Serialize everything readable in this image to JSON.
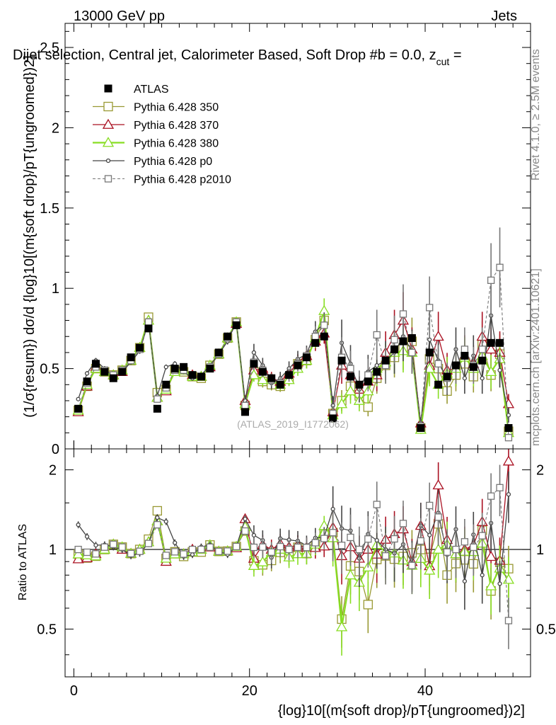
{
  "header": {
    "energy_label": "13000 GeV pp",
    "category_label": "Jets",
    "plot_title": "Dijet selection, Central jet, Calorimeter Based, Soft Drop #b = 0.0, z",
    "plot_title_sub": "cut",
    "plot_title_tail": " ="
  },
  "side_labels": {
    "rivet": "Rivet 4.1.0, ≥ 2.5M events",
    "mcplots": "mcplots.cern.ch [arXiv:2401.10621]"
  },
  "watermark": "(ATLAS_2019_I1772062)",
  "axes": {
    "main_ylabel": "(1/σ{resum}) dσ/d {log}10[(m{soft drop}/pT{ungroomed})2]",
    "ratio_ylabel": "Ratio to ATLAS",
    "xlabel": "{log}10[(m{soft drop}/pT{ungroomed})2]",
    "main_ticks": [
      "0",
      "0.5",
      "1",
      "1.5",
      "2",
      "2.5"
    ],
    "ratio_ticks": [
      "0.5",
      "1",
      "2"
    ],
    "x_ticks": [
      "0",
      "20",
      "40"
    ]
  },
  "legend": {
    "entries": [
      {
        "name": "ATLAS",
        "color": "#000000",
        "marker": "square-filled"
      },
      {
        "name": "Pythia 6.428 350",
        "color": "#999933",
        "marker": "square-open"
      },
      {
        "name": "Pythia 6.428 370",
        "color": "#aa1122",
        "marker": "triangle-open"
      },
      {
        "name": "Pythia 6.428 380",
        "color": "#88dd22",
        "marker": "triangle-open"
      },
      {
        "name": "Pythia 6.428 p0",
        "color": "#444444",
        "marker": "circle-open"
      },
      {
        "name": "Pythia 6.428 p2010",
        "color": "#777777",
        "marker": "square-open-dashed"
      }
    ]
  },
  "chart_data": {
    "type": "line",
    "title": "Dijet selection, Central jet, Calorimeter Based, Soft Drop #b = 0.0, z_cut =",
    "xlabel": "{log}10[(m{soft drop}/pT{ungroomed})2]",
    "ylabel": "(1/σ{resum}) dσ/d {log}10[(m{soft drop}/pT{ungroomed})2]",
    "xlim": [
      -1,
      52
    ],
    "ylim": [
      0,
      2.65
    ],
    "ratio_ylim": [
      0.33,
      2.4
    ],
    "x": [
      0.5,
      1.5,
      2.5,
      3.5,
      4.5,
      5.5,
      6.5,
      7.5,
      8.5,
      9.5,
      10.5,
      11.5,
      12.5,
      13.5,
      14.5,
      15.5,
      16.5,
      17.5,
      18.5,
      19.5,
      20.5,
      21.5,
      22.5,
      23.5,
      24.5,
      25.5,
      26.5,
      27.5,
      28.5,
      29.5,
      30.5,
      31.5,
      32.5,
      33.5,
      34.5,
      35.5,
      36.5,
      37.5,
      38.5,
      39.5,
      40.5,
      41.5,
      42.5,
      43.5,
      44.5,
      45.5,
      46.5,
      47.5,
      48.5,
      49.5
    ],
    "series": [
      {
        "name": "ATLAS",
        "values": [
          0.25,
          0.42,
          0.53,
          0.48,
          0.44,
          0.48,
          0.57,
          0.63,
          0.75,
          0.25,
          0.4,
          0.5,
          0.51,
          0.46,
          0.45,
          0.5,
          0.6,
          0.7,
          0.77,
          0.23,
          0.53,
          0.48,
          0.44,
          0.4,
          0.46,
          0.52,
          0.57,
          0.66,
          0.7,
          0.19,
          0.55,
          0.45,
          0.4,
          0.42,
          0.48,
          0.55,
          0.62,
          0.67,
          0.69,
          0.13,
          0.6,
          0.4,
          0.45,
          0.52,
          0.58,
          0.51,
          0.55,
          0.66,
          0.66,
          0.13
        ]
      },
      {
        "name": "Pythia 6.428 350",
        "values": [
          0.24,
          0.39,
          0.5,
          0.48,
          0.46,
          0.49,
          0.55,
          0.63,
          0.82,
          0.35,
          0.37,
          0.49,
          0.48,
          0.45,
          0.44,
          0.52,
          0.59,
          0.69,
          0.79,
          0.27,
          0.48,
          0.42,
          0.4,
          0.39,
          0.44,
          0.53,
          0.55,
          0.68,
          0.8,
          0.22,
          0.3,
          0.39,
          0.33,
          0.26,
          0.44,
          0.52,
          0.57,
          0.63,
          0.67,
          0.13,
          0.56,
          0.5,
          0.36,
          0.46,
          0.53,
          0.45,
          0.65,
          0.46,
          0.59,
          0.11
        ]
      },
      {
        "name": "Pythia 6.428 370",
        "values": [
          0.23,
          0.39,
          0.51,
          0.48,
          0.46,
          0.48,
          0.55,
          0.63,
          0.8,
          0.32,
          0.36,
          0.48,
          0.49,
          0.46,
          0.45,
          0.51,
          0.59,
          0.69,
          0.78,
          0.3,
          0.49,
          0.5,
          0.44,
          0.42,
          0.47,
          0.54,
          0.58,
          0.67,
          0.72,
          0.23,
          0.52,
          0.46,
          0.37,
          0.42,
          0.46,
          0.6,
          0.71,
          0.8,
          0.62,
          0.16,
          0.52,
          0.7,
          0.49,
          0.5,
          0.58,
          0.53,
          0.7,
          0.62,
          0.6,
          0.28
        ]
      },
      {
        "name": "Pythia 6.428 380",
        "values": [
          0.24,
          0.4,
          0.5,
          0.48,
          0.46,
          0.49,
          0.55,
          0.63,
          0.8,
          0.32,
          0.37,
          0.48,
          0.49,
          0.45,
          0.45,
          0.52,
          0.59,
          0.69,
          0.79,
          0.28,
          0.46,
          0.43,
          0.43,
          0.4,
          0.43,
          0.5,
          0.55,
          0.69,
          0.86,
          0.21,
          0.28,
          0.36,
          0.3,
          0.36,
          0.5,
          0.54,
          0.6,
          0.61,
          0.6,
          0.12,
          0.5,
          0.4,
          0.47,
          0.5,
          0.57,
          0.5,
          0.58,
          0.48,
          0.56,
          0.1
        ]
      },
      {
        "name": "Pythia 6.428 p0",
        "values": [
          0.31,
          0.47,
          0.55,
          0.5,
          0.45,
          0.48,
          0.54,
          0.61,
          0.79,
          0.33,
          0.51,
          0.53,
          0.48,
          0.44,
          0.46,
          0.52,
          0.59,
          0.67,
          0.79,
          0.3,
          0.6,
          0.52,
          0.41,
          0.44,
          0.5,
          0.56,
          0.59,
          0.73,
          0.78,
          0.27,
          0.66,
          0.53,
          0.37,
          0.48,
          0.52,
          0.55,
          0.6,
          0.7,
          0.61,
          0.16,
          0.68,
          0.55,
          0.43,
          0.62,
          0.44,
          0.58,
          0.44,
          0.83,
          0.49,
          0.21
        ]
      },
      {
        "name": "Pythia 6.428 p2010",
        "values": [
          0.25,
          0.41,
          0.51,
          0.49,
          0.46,
          0.49,
          0.55,
          0.62,
          0.79,
          0.31,
          0.38,
          0.49,
          0.49,
          0.46,
          0.45,
          0.51,
          0.59,
          0.69,
          0.79,
          0.27,
          0.54,
          0.49,
          0.43,
          0.41,
          0.46,
          0.53,
          0.58,
          0.7,
          0.77,
          0.22,
          0.57,
          0.5,
          0.4,
          0.46,
          0.71,
          0.52,
          0.68,
          0.84,
          0.6,
          0.14,
          0.88,
          0.53,
          0.44,
          0.52,
          0.62,
          0.52,
          0.62,
          1.05,
          1.13,
          0.07
        ]
      }
    ],
    "legend_position": "top-left"
  }
}
